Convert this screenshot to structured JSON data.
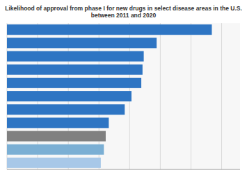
{
  "chart_data": {
    "type": "bar",
    "orientation": "horizontal",
    "title": "Likelihood of approval from phase I for new drugs in select disease areas in the U.S.\nbetween 2011 and 2020",
    "values": [
      33.4,
      24.4,
      22.3,
      22.1,
      21.9,
      20.3,
      19.2,
      16.6,
      16.1,
      15.8,
      15.3
    ],
    "colors": [
      "#2e75c3",
      "#2e75c3",
      "#2e75c3",
      "#2e75c3",
      "#2e75c3",
      "#2e75c3",
      "#2e75c3",
      "#2e75c3",
      "#808080",
      "#7bafd4",
      "#a8c8e8"
    ],
    "xlim": [
      0,
      38
    ],
    "xticks": [
      0,
      5,
      10,
      15,
      20,
      25,
      30,
      35
    ],
    "grid": true,
    "tick_labels": false
  }
}
